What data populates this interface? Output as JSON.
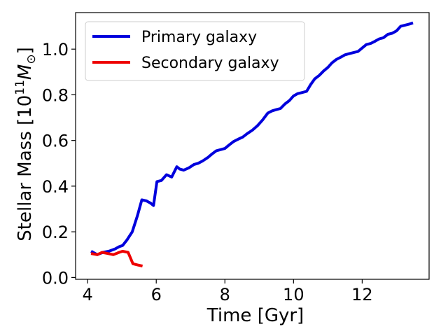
{
  "chart_data": {
    "type": "line",
    "title": "",
    "xlabel": "Time [Gyr]",
    "ylabel": {
      "main": "Stellar Mass [10",
      "exp": "11",
      "unit": "M",
      "sub": "⊙",
      "close": "]"
    },
    "xlim": [
      3.65,
      13.95
    ],
    "ylim": [
      -0.008,
      1.16
    ],
    "xticks": [
      4,
      6,
      8,
      10,
      12
    ],
    "xtick_labels": [
      "4",
      "6",
      "8",
      "10",
      "12"
    ],
    "yticks": [
      0.0,
      0.2,
      0.4,
      0.6,
      0.8,
      1.0
    ],
    "ytick_labels": [
      "0.0",
      "0.2",
      "0.4",
      "0.6",
      "0.8",
      "1.0"
    ],
    "grid": false,
    "legend_position": "top-left",
    "series": [
      {
        "name": "Primary galaxy",
        "color": "#0000dd",
        "x": [
          4.1,
          4.28,
          4.45,
          4.62,
          4.8,
          4.92,
          5.02,
          5.15,
          5.3,
          5.45,
          5.58,
          5.72,
          5.84,
          5.92,
          6.02,
          6.15,
          6.3,
          6.45,
          6.6,
          6.68,
          6.8,
          6.95,
          7.1,
          7.22,
          7.35,
          7.5,
          7.62,
          7.75,
          7.88,
          8.0,
          8.12,
          8.25,
          8.38,
          8.52,
          8.65,
          8.8,
          8.95,
          9.1,
          9.25,
          9.38,
          9.5,
          9.62,
          9.75,
          9.88,
          10.0,
          10.12,
          10.25,
          10.38,
          10.5,
          10.62,
          10.75,
          10.88,
          11.0,
          11.12,
          11.25,
          11.38,
          11.5,
          11.62,
          11.75,
          11.88,
          12.0,
          12.12,
          12.25,
          12.38,
          12.5,
          12.62,
          12.75,
          12.88,
          13.0,
          13.12,
          13.25,
          13.38,
          13.48
        ],
        "values": [
          0.115,
          0.1,
          0.11,
          0.115,
          0.125,
          0.135,
          0.14,
          0.165,
          0.2,
          0.27,
          0.34,
          0.335,
          0.325,
          0.315,
          0.42,
          0.425,
          0.45,
          0.44,
          0.485,
          0.475,
          0.47,
          0.48,
          0.495,
          0.5,
          0.51,
          0.525,
          0.54,
          0.555,
          0.56,
          0.565,
          0.58,
          0.595,
          0.605,
          0.615,
          0.63,
          0.645,
          0.665,
          0.69,
          0.72,
          0.73,
          0.735,
          0.74,
          0.76,
          0.775,
          0.795,
          0.805,
          0.81,
          0.815,
          0.845,
          0.87,
          0.885,
          0.905,
          0.92,
          0.94,
          0.955,
          0.965,
          0.975,
          0.98,
          0.985,
          0.99,
          1.005,
          1.02,
          1.025,
          1.035,
          1.045,
          1.05,
          1.065,
          1.07,
          1.08,
          1.1,
          1.105,
          1.11,
          1.115
        ]
      },
      {
        "name": "Secondary galaxy",
        "color": "#ee0000",
        "x": [
          4.1,
          4.28,
          4.42,
          4.58,
          4.75,
          4.92,
          5.02,
          5.18,
          5.32,
          5.45,
          5.6
        ],
        "values": [
          0.105,
          0.1,
          0.11,
          0.105,
          0.1,
          0.11,
          0.115,
          0.11,
          0.06,
          0.055,
          0.05
        ]
      }
    ]
  }
}
